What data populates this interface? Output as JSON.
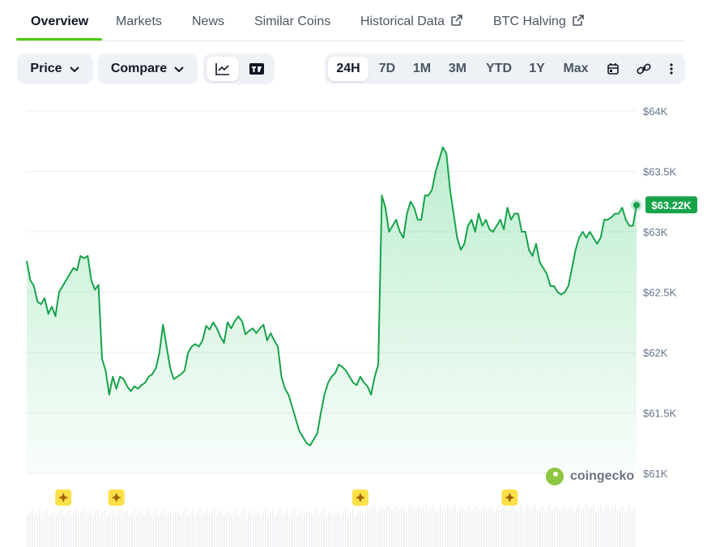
{
  "tabs": [
    {
      "label": "Overview",
      "active": true,
      "external": false
    },
    {
      "label": "Markets",
      "active": false,
      "external": false
    },
    {
      "label": "News",
      "active": false,
      "external": false
    },
    {
      "label": "Similar Coins",
      "active": false,
      "external": false
    },
    {
      "label": "Historical Data",
      "active": false,
      "external": true
    },
    {
      "label": "BTC Halving",
      "active": false,
      "external": true
    }
  ],
  "toolbar": {
    "price_label": "Price",
    "compare_label": "Compare",
    "chart_modes": [
      "line-chart-icon",
      "tradingview-icon"
    ],
    "ranges": [
      "24H",
      "7D",
      "1M",
      "3M",
      "YTD",
      "1Y",
      "Max"
    ],
    "active_range": "24H",
    "tools": [
      "calendar-icon",
      "link-icon",
      "more-icon"
    ]
  },
  "watermark": "coingecko",
  "colors": {
    "line": "#16a34a",
    "badge": "#16a34a",
    "marker": "#fde047",
    "grid": "#e5e7eb"
  },
  "chart_data": {
    "type": "area",
    "ylim": [
      61000,
      64000
    ],
    "y_ticks": [
      "$64K",
      "$63.5K",
      "$63K",
      "$62.5K",
      "$62K",
      "$61.5K",
      "$61K"
    ],
    "y_tick_values": [
      64000,
      63500,
      63000,
      62500,
      62000,
      61500,
      61000
    ],
    "current_price": 63220,
    "current_label": "$63.22K",
    "values": [
      62760,
      62600,
      62550,
      62420,
      62400,
      62450,
      62320,
      62380,
      62300,
      62500,
      62550,
      62600,
      62650,
      62700,
      62680,
      62800,
      62780,
      62800,
      62600,
      62520,
      62560,
      61950,
      61850,
      61650,
      61800,
      61700,
      61800,
      61780,
      61720,
      61680,
      61720,
      61700,
      61730,
      61750,
      61800,
      61820,
      61870,
      62000,
      62230,
      62050,
      61870,
      61780,
      61800,
      61820,
      61850,
      62000,
      62050,
      62070,
      62050,
      62100,
      62220,
      62190,
      62250,
      62200,
      62130,
      62080,
      62250,
      62200,
      62260,
      62300,
      62260,
      62150,
      62180,
      62200,
      62160,
      62200,
      62230,
      62100,
      62160,
      62100,
      62050,
      61800,
      61700,
      61650,
      61550,
      61450,
      61350,
      61300,
      61250,
      61230,
      61280,
      61330,
      61500,
      61650,
      61750,
      61800,
      61830,
      61900,
      61880,
      61850,
      61800,
      61750,
      61730,
      61800,
      61750,
      61720,
      61650,
      61800,
      61900,
      63300,
      63200,
      63000,
      63050,
      63100,
      63000,
      62950,
      63150,
      63250,
      63200,
      63100,
      63100,
      63300,
      63300,
      63350,
      63500,
      63600,
      63700,
      63650,
      63350,
      63150,
      62950,
      62850,
      62900,
      63050,
      63100,
      63000,
      63150,
      63050,
      63100,
      63020,
      63000,
      63050,
      63100,
      63020,
      63200,
      63100,
      63150,
      63150,
      63000,
      63000,
      62850,
      62800,
      62900,
      62750,
      62700,
      62650,
      62550,
      62550,
      62500,
      62480,
      62500,
      62550,
      62700,
      62850,
      62950,
      63000,
      62950,
      63000,
      62950,
      62900,
      62950,
      63100,
      63100,
      63120,
      63150,
      63150,
      63200,
      63100,
      63050,
      63050,
      63220
    ],
    "event_markers_x_fraction": [
      0.06,
      0.147,
      0.547,
      0.792
    ]
  }
}
